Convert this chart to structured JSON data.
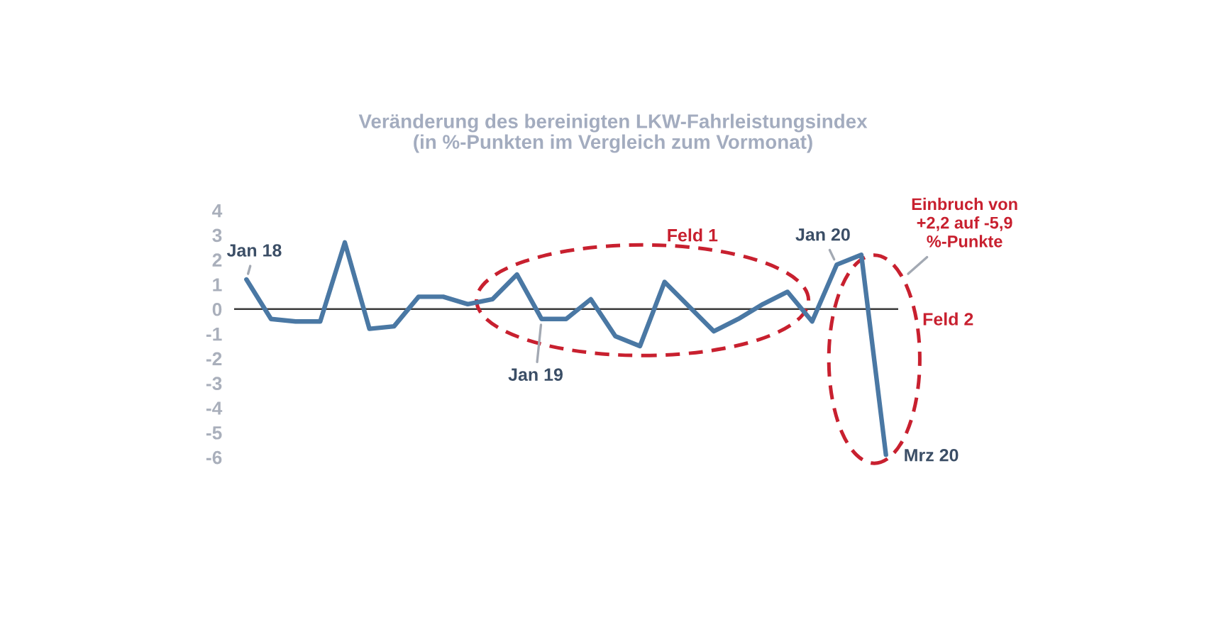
{
  "chart_data": {
    "type": "line",
    "title": "Veränderung des bereinigten LKW-Fahrleistungsindex\n(in %-Punkten im Vergleich zum Vormonat)",
    "categories": [
      null,
      null,
      null,
      null,
      null,
      null,
      null,
      null,
      null,
      null,
      null,
      null,
      null,
      null,
      null,
      null,
      null,
      null,
      null,
      null,
      null,
      null,
      null,
      null,
      null,
      null,
      null
    ],
    "series": [
      {
        "color": "#4a78a4",
        "values": [
          1.2,
          -0.4,
          -0.5,
          -0.5,
          2.7,
          -0.8,
          -0.7,
          0.5,
          0.5,
          0.2,
          0.4,
          1.4,
          -0.4,
          -0.4,
          0.4,
          -1.1,
          -1.5,
          1.1,
          0.1,
          -0.9,
          -0.4,
          0.2,
          0.7,
          -0.5,
          1.8,
          2.2,
          -5.9
        ]
      }
    ],
    "ylim": [
      -6,
      4
    ],
    "yticks": [
      -6,
      -5,
      -4,
      -3,
      -2,
      -1,
      0,
      1,
      2,
      3,
      4
    ],
    "tick_labels": "y",
    "ref_lines": [
      {
        "axis": "y",
        "value": 0,
        "color": "#3a3a3a"
      }
    ],
    "annotations": [
      "Jan 18",
      "Jan 19",
      "Feld 1",
      "Jan 20",
      "Einbruch von\n+2,2 auf -5,9\n%-Punkte",
      "Feld 2",
      "Mrz 20"
    ]
  }
}
